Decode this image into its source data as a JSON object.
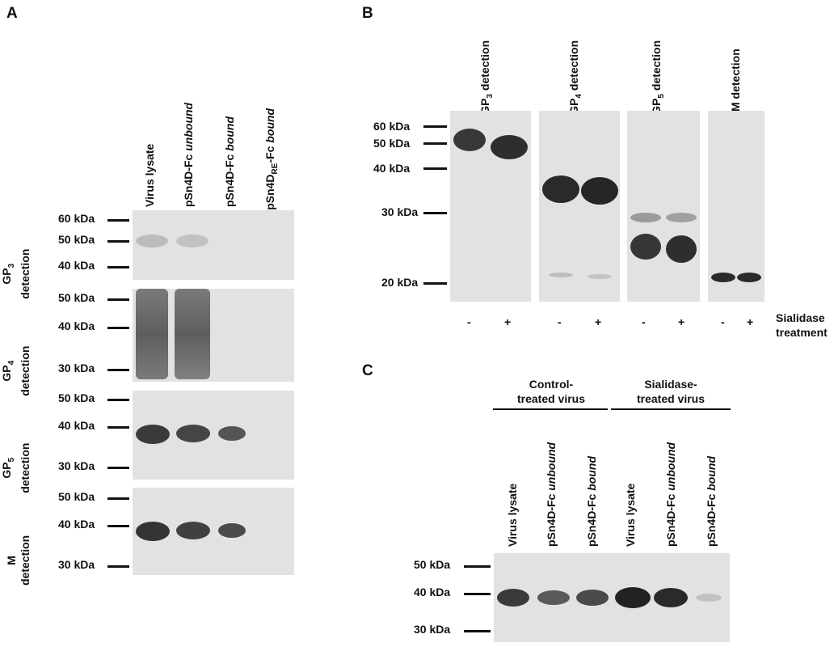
{
  "panels": {
    "A": {
      "letter": "A",
      "lanes": [
        "Virus lysate",
        "pSn4D-Fc ",
        "pSn4D-Fc ",
        "pSn4D",
        "-Fc "
      ],
      "lane_italic": [
        "unbound",
        "bound",
        "bound"
      ],
      "lane4_sub": "RE",
      "rows": [
        {
          "label_pre": "GP",
          "label_sub": "3",
          "label_post": "detection",
          "markers": [
            "60 kDa",
            "50 kDa",
            "40 kDa"
          ]
        },
        {
          "label_pre": "GP",
          "label_sub": "4",
          "label_post": "detection",
          "markers": [
            "50 kDa",
            "40 kDa",
            "30 kDa"
          ]
        },
        {
          "label_pre": "GP",
          "label_sub": "5",
          "label_post": "detection",
          "markers": [
            "50 kDa",
            "40 kDa",
            "30 kDa"
          ]
        },
        {
          "label_pre": "M",
          "label_sub": "",
          "label_post": "detection",
          "markers": [
            "50 kDa",
            "40 kDa",
            "30 kDa"
          ]
        }
      ]
    },
    "B": {
      "letter": "B",
      "markers": [
        "60 kDa",
        "50 kDa",
        "40 kDa",
        "30 kDa",
        "20 kDa"
      ],
      "blots": [
        {
          "pre": "GP",
          "sub": "3",
          "post": " detection"
        },
        {
          "pre": "GP",
          "sub": "4",
          "post": " detection"
        },
        {
          "pre": "GP",
          "sub": "5",
          "post": " detection"
        },
        {
          "pre": "M detection",
          "sub": "",
          "post": ""
        }
      ],
      "minus": "-",
      "plus": "+",
      "treatment_line1": "Sialidase",
      "treatment_line2": "treatment"
    },
    "C": {
      "letter": "C",
      "group1_line1": "Control-",
      "group1_line2": "treated virus",
      "group2_line1": "Sialidase-",
      "group2_line2": "treated virus",
      "lane_plain": [
        "Virus lysate",
        "pSn4D-Fc ",
        "pSn4D-Fc ",
        "Virus lysate",
        "pSn4D-Fc ",
        "pSn4D-Fc "
      ],
      "lane_italic": [
        "",
        "unbound",
        "bound",
        "",
        "unbound",
        "bound"
      ],
      "markers": [
        "50 kDa",
        "40 kDa",
        "30 kDa"
      ]
    }
  }
}
